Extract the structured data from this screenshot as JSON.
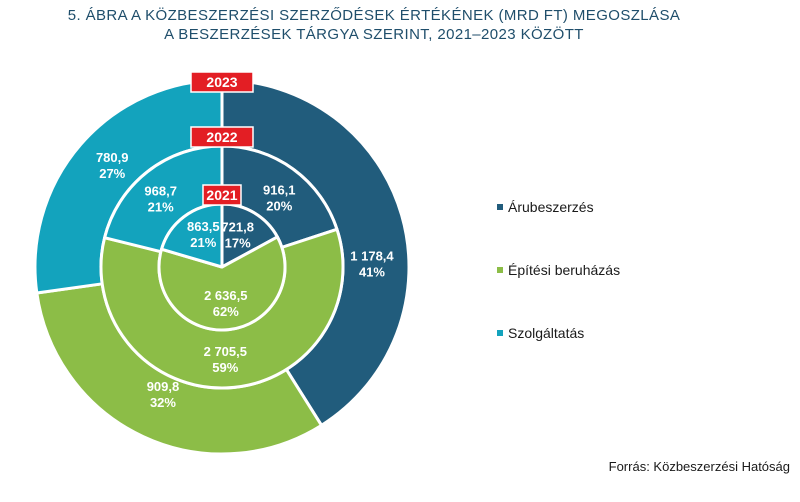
{
  "title": {
    "line1": "5. ÁBRA  A KÖZBESZERZÉSI SZERZŐDÉSEK ÉRTÉKÉNEK (MRD FT) MEGOSZLÁSA",
    "line2": "A BESZERZÉSEK TÁRGYA SZERINT, 2021–2023 KÖZÖTT"
  },
  "source": "Forrás: Közbeszerzési Hatóság",
  "colors": {
    "arubeszerzes": "#215c7c",
    "epitesi": "#8cbd47",
    "szolgaltatas": "#13a3bd",
    "year_badge": "#e31e24"
  },
  "chart_data": {
    "type": "pie",
    "subtype": "nested-donut",
    "legend_position": "right",
    "legend": [
      {
        "key": "arubeszerzes",
        "label": "Árubeszerzés"
      },
      {
        "key": "epitesi",
        "label": "Építési beruházás"
      },
      {
        "key": "szolgaltatas",
        "label": "Szolgáltatás"
      }
    ],
    "rings": [
      {
        "year": "2021",
        "slices": [
          {
            "key": "arubeszerzes",
            "value": 721.8,
            "value_label": "721,8",
            "pct_label": "17%"
          },
          {
            "key": "epitesi",
            "value": 2636.5,
            "value_label": "2 636,5",
            "pct_label": "62%"
          },
          {
            "key": "szolgaltatas",
            "value": 863.5,
            "value_label": "863,5",
            "pct_label": "21%"
          }
        ]
      },
      {
        "year": "2022",
        "slices": [
          {
            "key": "arubeszerzes",
            "value": 916.1,
            "value_label": "916,1",
            "pct_label": "20%"
          },
          {
            "key": "epitesi",
            "value": 2705.5,
            "value_label": "2 705,5",
            "pct_label": "59%"
          },
          {
            "key": "szolgaltatas",
            "value": 968.7,
            "value_label": "968,7",
            "pct_label": "21%"
          }
        ]
      },
      {
        "year": "2023",
        "slices": [
          {
            "key": "arubeszerzes",
            "value": 1178.4,
            "value_label": "1 178,4",
            "pct_label": "41%"
          },
          {
            "key": "epitesi",
            "value": 909.8,
            "value_label": "909,8",
            "pct_label": "32%"
          },
          {
            "key": "szolgaltatas",
            "value": 780.9,
            "value_label": "780,9",
            "pct_label": "27%"
          }
        ]
      }
    ]
  }
}
